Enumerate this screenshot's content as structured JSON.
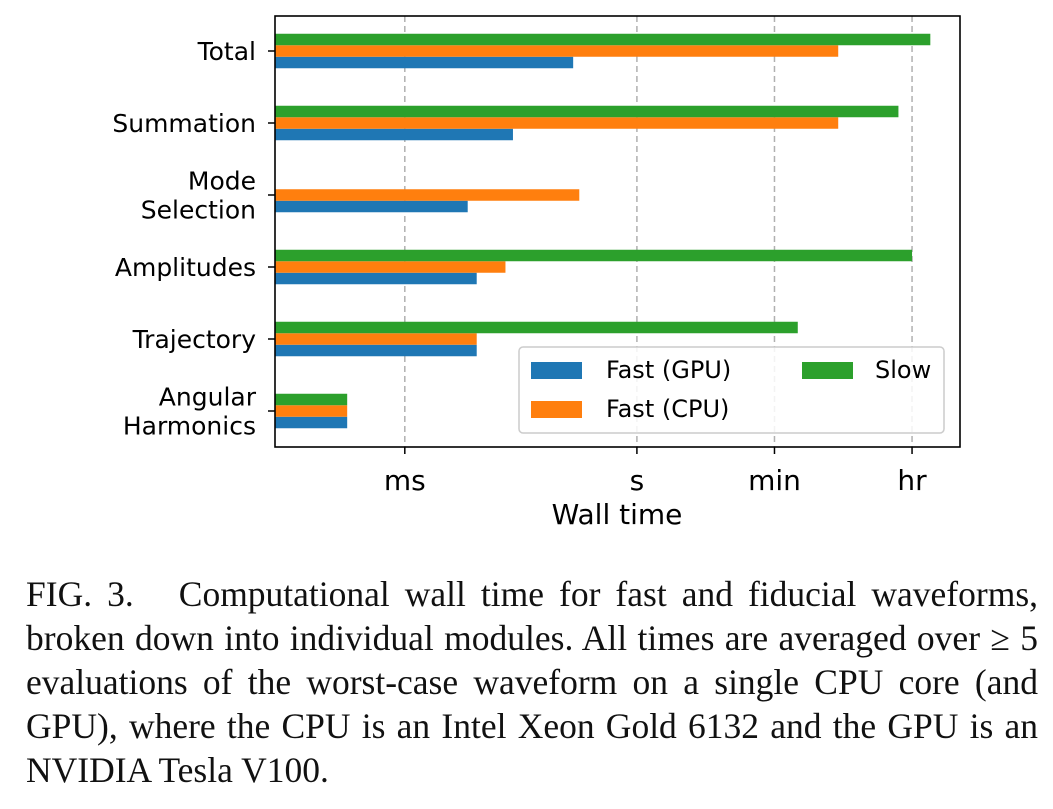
{
  "chart_data": {
    "type": "bar",
    "orientation": "horizontal",
    "scale": "log",
    "xlabel": "Wall time",
    "ylabel": "",
    "xlim_seconds": [
      2.1e-05,
      15000
    ],
    "xticks": [
      {
        "label": "ms",
        "value_seconds": 0.001
      },
      {
        "label": "s",
        "value_seconds": 1
      },
      {
        "label": "min",
        "value_seconds": 60
      },
      {
        "label": "hr",
        "value_seconds": 3600
      }
    ],
    "categories": [
      {
        "key": "total",
        "lines": [
          "Total"
        ]
      },
      {
        "key": "summation",
        "lines": [
          "Summation"
        ]
      },
      {
        "key": "mode_selection",
        "lines": [
          "Mode",
          "Selection"
        ]
      },
      {
        "key": "amplitudes",
        "lines": [
          "Amplitudes"
        ]
      },
      {
        "key": "trajectory",
        "lines": [
          "Trajectory"
        ]
      },
      {
        "key": "angular_harmonics",
        "lines": [
          "Angular",
          "Harmonics"
        ]
      }
    ],
    "series": [
      {
        "name": "Fast (GPU)",
        "color": "#1f77b4",
        "values_seconds": [
          0.15,
          0.025,
          0.0065,
          0.0085,
          0.0085,
          0.00018
        ]
      },
      {
        "name": "Fast (CPU)",
        "color": "#ff7f0e",
        "values_seconds": [
          400,
          400,
          0.18,
          0.02,
          0.0085,
          0.00018
        ]
      },
      {
        "name": "Slow",
        "color": "#2ca02c",
        "values_seconds": [
          6200,
          2400,
          null,
          3600,
          120,
          0.00018
        ]
      }
    ],
    "grid": "vertical dashed at tick positions",
    "legend_position": "lower-right"
  },
  "caption": {
    "label": "FIG. 3.",
    "text": "Computational wall time for fast and fiducial waveforms, broken down into individual modules. All times are averaged over ≥ 5 evaluations of the worst-case waveform on a single CPU core (and GPU), where the CPU is an Intel Xeon Gold 6132 and the GPU is an NVIDIA Tesla V100."
  }
}
